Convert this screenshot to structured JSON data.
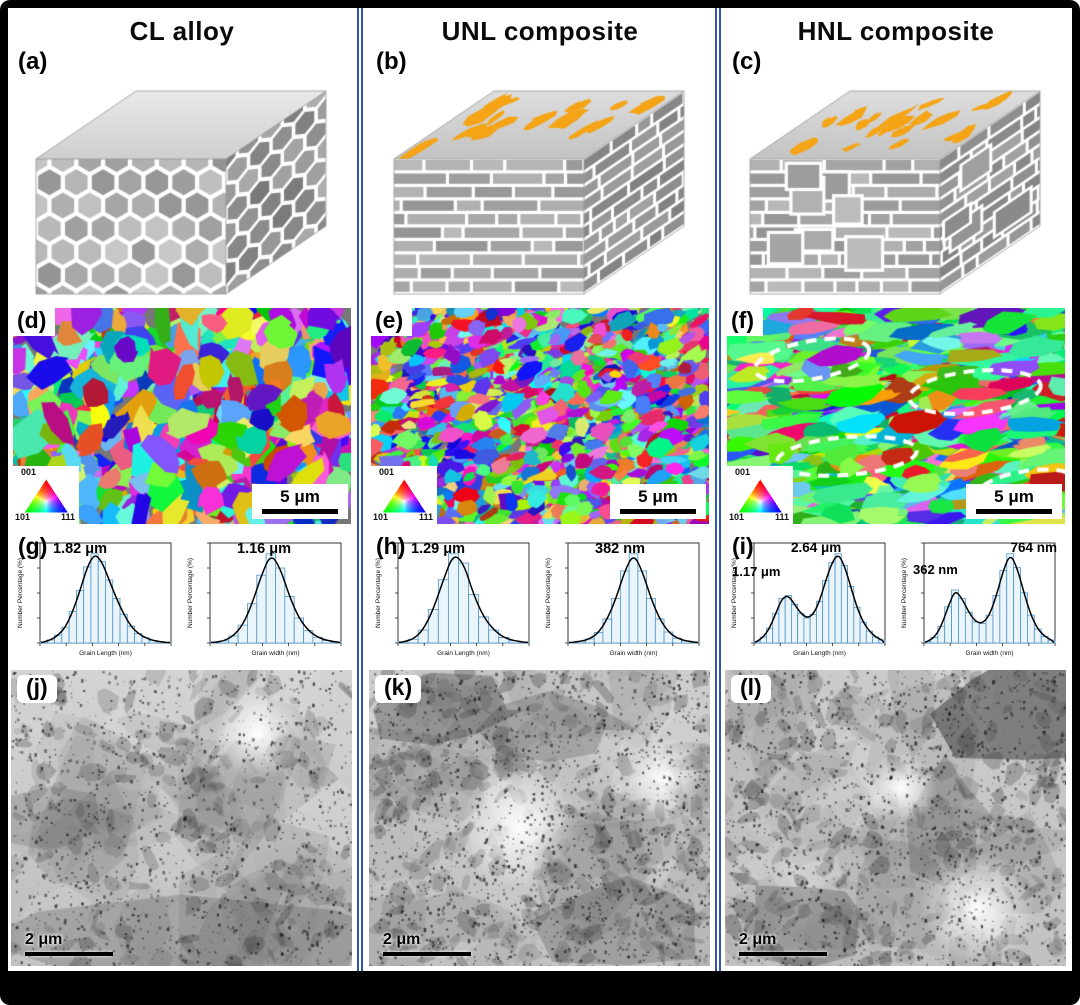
{
  "columns": [
    {
      "title": "CL alloy",
      "labels": {
        "schematic": "(a)",
        "ebsd": "(d)",
        "hist": "(g)",
        "tem": "(j)"
      },
      "ebsd": {
        "scale_bar": "5 μm",
        "ipf_labels": [
          "001",
          "101",
          "111"
        ]
      },
      "tem": {
        "scale_bar": "2 μm"
      },
      "histograms": [
        {
          "peaks": [
            "1.82 μm"
          ]
        },
        {
          "peaks": [
            "1.16 μm"
          ]
        }
      ]
    },
    {
      "title": "UNL composite",
      "labels": {
        "schematic": "(b)",
        "ebsd": "(e)",
        "hist": "(h)",
        "tem": "(k)"
      },
      "ebsd": {
        "scale_bar": "5 μm",
        "ipf_labels": [
          "001",
          "101",
          "111"
        ]
      },
      "tem": {
        "scale_bar": "2 μm"
      },
      "histograms": [
        {
          "peaks": [
            "1.29 μm"
          ]
        },
        {
          "peaks": [
            "382 nm"
          ]
        }
      ]
    },
    {
      "title": "HNL composite",
      "labels": {
        "schematic": "(c)",
        "ebsd": "(f)",
        "hist": "(i)",
        "tem": "(l)"
      },
      "ebsd": {
        "scale_bar": "5 μm",
        "ipf_labels": [
          "001",
          "101",
          "111"
        ]
      },
      "tem": {
        "scale_bar": "2 μm"
      },
      "histograms": [
        {
          "peaks": [
            "1.17 μm",
            "2.64 μm"
          ]
        },
        {
          "peaks": [
            "362 nm",
            "764 nm"
          ]
        }
      ]
    }
  ],
  "chart_data": [
    {
      "type": "bar",
      "panel": "g-left",
      "peak_labels": [
        "1.82 μm"
      ],
      "xlabel": "Grain Length (nm)",
      "ylabel": "Number Percentage (%)",
      "values": [
        0.2,
        0.6,
        1.5,
        3,
        6,
        10,
        14.5,
        17,
        15.5,
        12,
        8.5,
        5.5,
        3.2,
        1.8,
        1,
        0.5,
        0.25,
        0.1
      ]
    },
    {
      "type": "bar",
      "panel": "g-right",
      "peak_labels": [
        "1.16 μm"
      ],
      "xlabel": "Grain width (nm)",
      "ylabel": "Number Percentage (%)",
      "values": [
        0.2,
        0.6,
        2,
        5,
        11,
        19,
        25,
        21,
        13,
        7,
        3.5,
        1.6,
        0.7,
        0.3
      ]
    },
    {
      "type": "bar",
      "panel": "h-left",
      "peak_labels": [
        "1.29 μm"
      ],
      "xlabel": "Grain Length (nm)",
      "ylabel": "Number Percentage (%)",
      "values": [
        0.3,
        1,
        3.5,
        9,
        17,
        24,
        21.5,
        13,
        7,
        3.5,
        1.5,
        0.6,
        0.25
      ]
    },
    {
      "type": "bar",
      "panel": "h-right",
      "peak_labels": [
        "382 nm"
      ],
      "xlabel": "Grain width (nm)",
      "ylabel": "Number Percentage (%)",
      "values": [
        0.2,
        0.5,
        1.2,
        3,
        7,
        13,
        21,
        26,
        21,
        13,
        7,
        3.2,
        1.4,
        0.6,
        0.25
      ]
    },
    {
      "type": "bar",
      "panel": "i-left",
      "peak_labels": [
        "1.17 μm",
        "2.64 μm"
      ],
      "xlabel": "Grain Length (nm)",
      "ylabel": "Number Percentage (%)",
      "values": [
        0.3,
        1,
        2.5,
        5,
        7.5,
        8,
        6.5,
        5,
        4.2,
        4.8,
        7,
        10.5,
        13.5,
        15,
        13,
        9.5,
        6,
        3.5,
        2,
        1,
        0.5
      ]
    },
    {
      "type": "bar",
      "panel": "i-right",
      "peak_labels": [
        "362 nm",
        "764 nm"
      ],
      "xlabel": "Grain width (nm)",
      "ylabel": "Number Percentage (%)",
      "values": [
        0.3,
        1,
        3,
        6.5,
        9.5,
        8,
        5.5,
        3.8,
        3.5,
        5,
        8.5,
        13,
        16,
        13.5,
        9,
        5,
        2.5,
        1.2,
        0.5
      ]
    }
  ],
  "colors": {
    "separator_blue": "#2e58a6",
    "particle_orange": "#F4A414",
    "histogram_bar_outline": "#4d94c8"
  }
}
